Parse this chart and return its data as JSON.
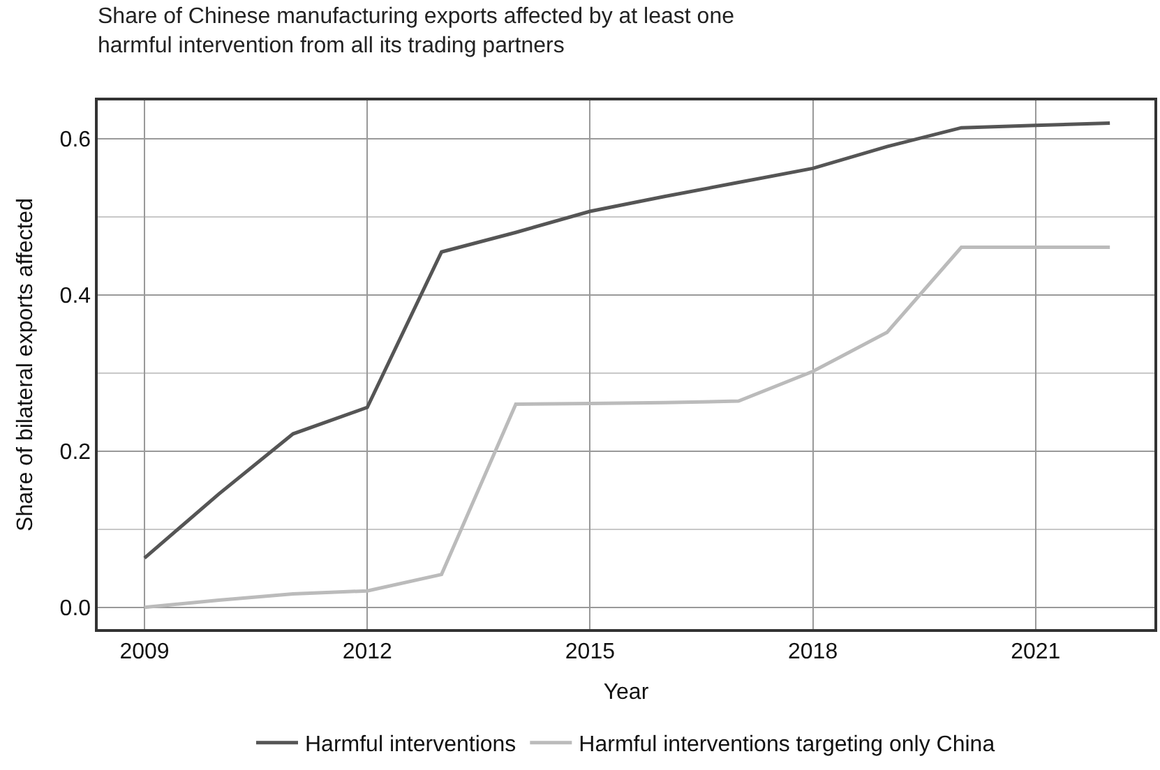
{
  "chart_data": {
    "type": "line",
    "title": "Share of Chinese manufacturing exports affected by at least one harmful intervention from all its trading partners",
    "xlabel": "Year",
    "ylabel": "Share of bilateral exports affected",
    "x": [
      2009,
      2010,
      2011,
      2012,
      2013,
      2014,
      2015,
      2016,
      2017,
      2018,
      2019,
      2020,
      2021,
      2022
    ],
    "series": [
      {
        "name": "Harmful interventions",
        "color": "#555555",
        "values": [
          0.063,
          0.145,
          0.222,
          0.256,
          0.455,
          0.48,
          0.507,
          0.526,
          0.544,
          0.562,
          0.59,
          0.614,
          0.617,
          0.62
        ]
      },
      {
        "name": "Harmful interventions targeting only China",
        "color": "#bbbbbb",
        "values": [
          0,
          0.009,
          0.017,
          0.021,
          0.042,
          0.26,
          0.261,
          0.262,
          0.264,
          0.302,
          0.352,
          0.461,
          0.461,
          0.461
        ]
      }
    ],
    "xlim": [
      2008.37,
      2022.6
    ],
    "xticks": [
      2009,
      2012,
      2015,
      2018,
      2021
    ],
    "ylim": [
      -0.028,
      0.649
    ],
    "yticks": [
      {
        "value": 0,
        "label": "0.0"
      },
      {
        "value": 0.2,
        "label": "0.2"
      },
      {
        "value": 0.4,
        "label": "0.4"
      },
      {
        "value": 0.6,
        "label": "0.6"
      }
    ],
    "grid": true,
    "legend": "bottom",
    "marker": "none",
    "line_style": "solid"
  }
}
